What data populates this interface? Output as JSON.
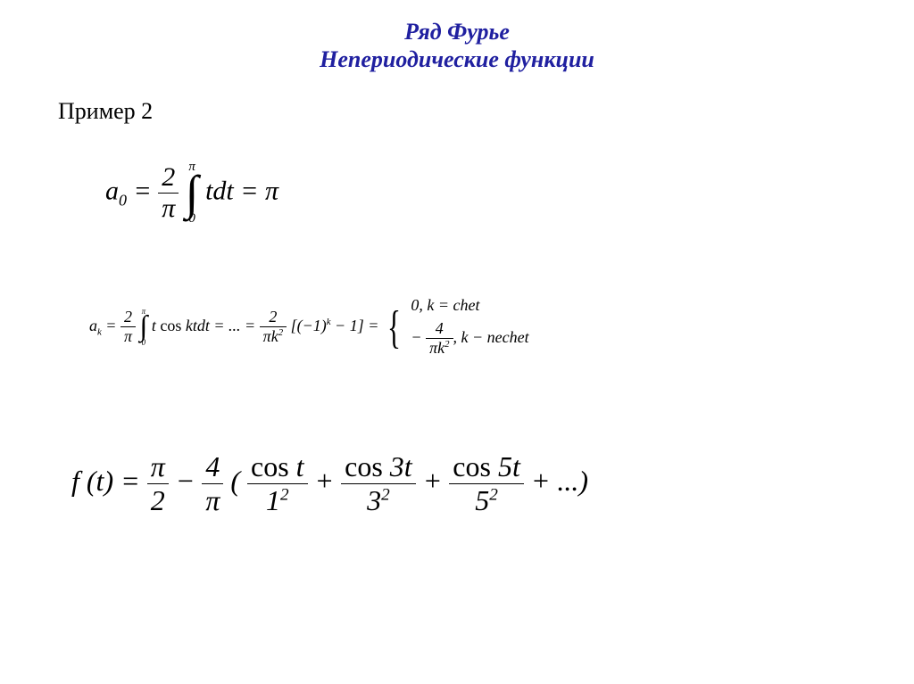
{
  "title": {
    "line1": "Ряд Фурье",
    "line2": "Непериодические функции",
    "color": "#2020a0",
    "fontsize": 26,
    "italic": true,
    "bold": true
  },
  "example_label": "Пример 2",
  "background_color": "#ffffff",
  "text_color": "#000000",
  "formulas": {
    "a0": {
      "var": "a",
      "sub": "0",
      "eq": "=",
      "frac1_num": "2",
      "frac1_den": "π",
      "int_upper": "π",
      "int_lower": "0",
      "int_sym": "∫",
      "integrand": "tdt",
      "rhs": "= π"
    },
    "ak": {
      "var": "a",
      "sub": "k",
      "eq": "=",
      "frac1_num": "2",
      "frac1_den": "π",
      "int_upper": "π",
      "int_lower": "0",
      "int_sym": "∫",
      "integrand_pre": "t ",
      "integrand_cos": "cos",
      "integrand_post": " ktdt",
      "dots": "= ... =",
      "frac2_num": "2",
      "frac2_den_pi": "π",
      "frac2_den_k": "k",
      "frac2_den_exp": "2",
      "bracket": "[(−1)",
      "bracket_exp": "k",
      "bracket_end": " − 1] =",
      "case1_val": "0, ",
      "case1_cond": "k = chet",
      "case2_minus": "−",
      "case2_num": "4",
      "case2_den_pi": "π",
      "case2_den_k": "k",
      "case2_den_exp": "2",
      "case2_comma": ", ",
      "case2_cond": "k − nechet"
    },
    "ft": {
      "lhs": "f (t) =",
      "t1_num": "π",
      "t1_den": "2",
      "minus": "−",
      "t2_num": "4",
      "t2_den": "π",
      "open": "(",
      "c1_num_cos": "cos",
      "c1_num_arg": " t",
      "c1_den_base": "1",
      "c1_den_exp": "2",
      "plus1": "+",
      "c2_num_cos": "cos",
      "c2_num_arg": " 3t",
      "c2_den_base": "3",
      "c2_den_exp": "2",
      "plus2": "+",
      "c3_num_cos": "cos",
      "c3_num_arg": " 5t",
      "c3_den_base": "5",
      "c3_den_exp": "2",
      "end": "+ ...)"
    }
  }
}
